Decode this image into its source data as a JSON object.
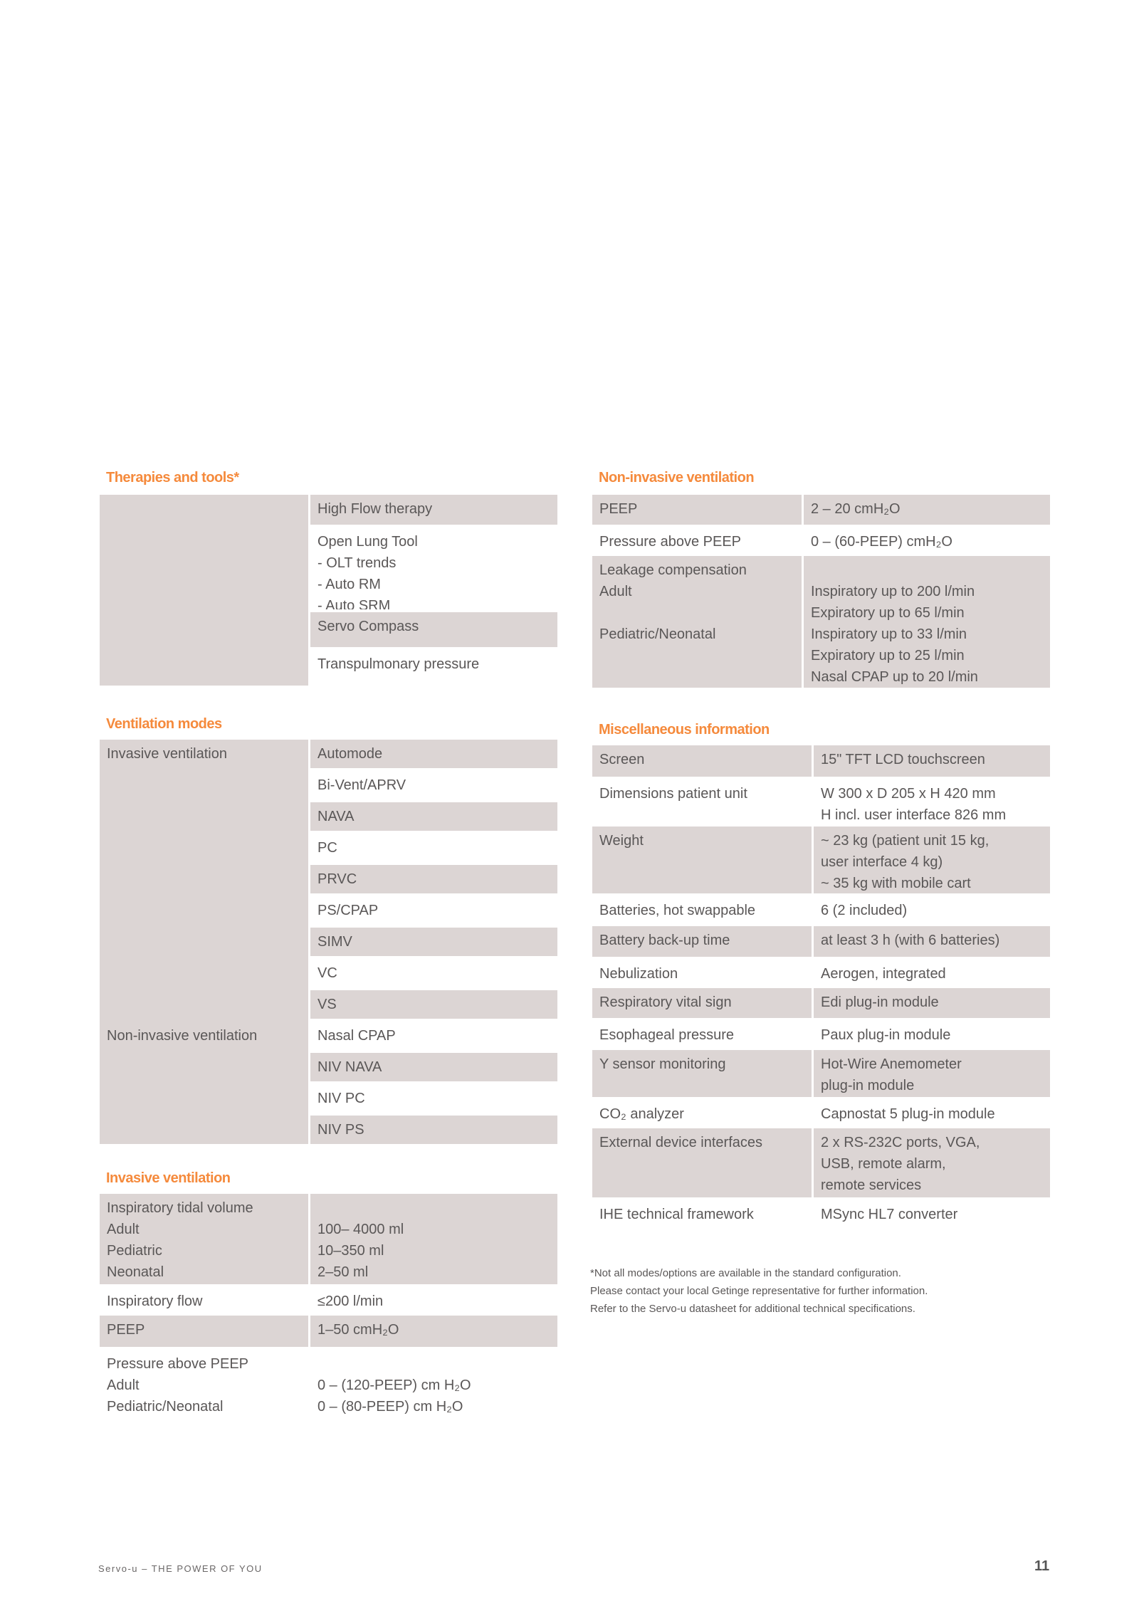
{
  "therapies": {
    "heading": "Therapies and tools*",
    "items": [
      {
        "lines": [
          "High Flow therapy"
        ],
        "shaded": true
      },
      {
        "lines": [
          "Open Lung Tool",
          "- OLT trends",
          "- Auto RM",
          "- Auto SRM"
        ],
        "shaded": false
      },
      {
        "lines": [
          "Servo Compass"
        ],
        "shaded": true
      },
      {
        "lines": [
          "Transpulmonary pressure"
        ],
        "shaded": false
      }
    ]
  },
  "ventilation_modes": {
    "heading": "Ventilation modes",
    "groups": [
      "Invasive ventilation",
      "Non-invasive ventilation"
    ],
    "items": [
      {
        "label": "Automode",
        "shaded": true
      },
      {
        "label": "Bi-Vent/APRV",
        "shaded": false
      },
      {
        "label": "NAVA",
        "shaded": true
      },
      {
        "label": "PC",
        "shaded": false
      },
      {
        "label": "PRVC",
        "shaded": true
      },
      {
        "label": "PS/CPAP",
        "shaded": false
      },
      {
        "label": "SIMV",
        "shaded": true
      },
      {
        "label": "VC",
        "shaded": false
      },
      {
        "label": "VS",
        "shaded": true
      },
      {
        "label": "Nasal CPAP",
        "shaded": false
      },
      {
        "label": "NIV NAVA",
        "shaded": true
      },
      {
        "label": "NIV PC",
        "shaded": false
      },
      {
        "label": "NIV PS",
        "shaded": true
      }
    ]
  },
  "invasive_ventilation": {
    "heading": "Invasive ventilation",
    "rows": [
      {
        "label": [
          "Inspiratory tidal volume",
          "Adult",
          "Pediatric",
          "Neonatal"
        ],
        "value": [
          "",
          "100– 4000 ml",
          "10–350 ml",
          "2–50 ml"
        ],
        "shaded": true
      },
      {
        "label": [
          "Inspiratory flow"
        ],
        "value": [
          "≤200 l/min"
        ],
        "shaded": false
      },
      {
        "label": [
          "PEEP"
        ],
        "value": [
          "1–50 cmH₂O"
        ],
        "shaded": true
      },
      {
        "label": [
          "Pressure above PEEP",
          "Adult",
          "Pediatric/Neonatal"
        ],
        "value": [
          "",
          "0 – (120-PEEP) cm H₂O",
          "0 – (80-PEEP) cm H₂O"
        ],
        "shaded": false
      }
    ]
  },
  "non_invasive_ventilation": {
    "heading": "Non-invasive ventilation",
    "rows": [
      {
        "label": [
          "PEEP"
        ],
        "value": [
          "2 – 20 cmH₂O"
        ],
        "shaded": true
      },
      {
        "label": [
          "Pressure above PEEP"
        ],
        "value": [
          "0 – (60-PEEP) cmH₂O"
        ],
        "shaded": false
      },
      {
        "label": [
          "Leakage compensation",
          "Adult",
          "",
          "Pediatric/Neonatal"
        ],
        "value": [
          "",
          "Inspiratory up to 200 l/min",
          "Expiratory up to 65 l/min",
          "Inspiratory up to 33 l/min",
          "Expiratory up to 25 l/min",
          "Nasal CPAP up to 20 l/min"
        ],
        "shaded": true
      }
    ]
  },
  "miscellaneous": {
    "heading": "Miscellaneous information",
    "rows": [
      {
        "label": [
          "Screen"
        ],
        "value": [
          "15\" TFT LCD touchscreen"
        ],
        "shaded": true
      },
      {
        "label": [
          "Dimensions patient unit"
        ],
        "value": [
          "W 300 x D 205 x H 420 mm",
          "H incl. user interface 826 mm"
        ],
        "shaded": false
      },
      {
        "label": [
          "Weight"
        ],
        "value": [
          "~ 23 kg (patient unit 15 kg,",
          "user interface 4 kg)",
          "~ 35 kg with mobile cart"
        ],
        "shaded": true
      },
      {
        "label": [
          "Batteries, hot swappable"
        ],
        "value": [
          "6 (2 included)"
        ],
        "shaded": false
      },
      {
        "label": [
          "Battery back-up time"
        ],
        "value": [
          "at least 3 h (with 6 batteries)"
        ],
        "shaded": true
      },
      {
        "label": [
          "Nebulization"
        ],
        "value": [
          "Aerogen, integrated"
        ],
        "shaded": false
      },
      {
        "label": [
          "Respiratory vital sign"
        ],
        "value": [
          "Edi plug-in module"
        ],
        "shaded": true
      },
      {
        "label": [
          "Esophageal pressure"
        ],
        "value": [
          "Paux plug-in module"
        ],
        "shaded": false
      },
      {
        "label": [
          "Y sensor monitoring"
        ],
        "value": [
          "Hot-Wire Anemometer",
          "plug-in module"
        ],
        "shaded": true
      },
      {
        "label": [
          "CO₂ analyzer"
        ],
        "value": [
          "Capnostat 5 plug-in module"
        ],
        "shaded": false
      },
      {
        "label": [
          "External device interfaces"
        ],
        "value": [
          "2 x RS-232C ports, VGA,",
          "USB, remote alarm,",
          "remote services"
        ],
        "shaded": true
      },
      {
        "label": [
          "IHE technical framework"
        ],
        "value": [
          "MSync HL7 converter"
        ],
        "shaded": false
      }
    ]
  },
  "footnote": [
    "*Not all modes/options are available in the standard configuration.",
    "Please contact your local Getinge representative for further information.",
    "Refer to the Servo-u datasheet for additional technical specifications."
  ],
  "footer": {
    "text": "Servo-u – THE POWER OF YOU",
    "page": "11"
  },
  "colors": {
    "accent": "#f58a3c",
    "shade": "#dcd5d4",
    "text": "#5a5757"
  }
}
